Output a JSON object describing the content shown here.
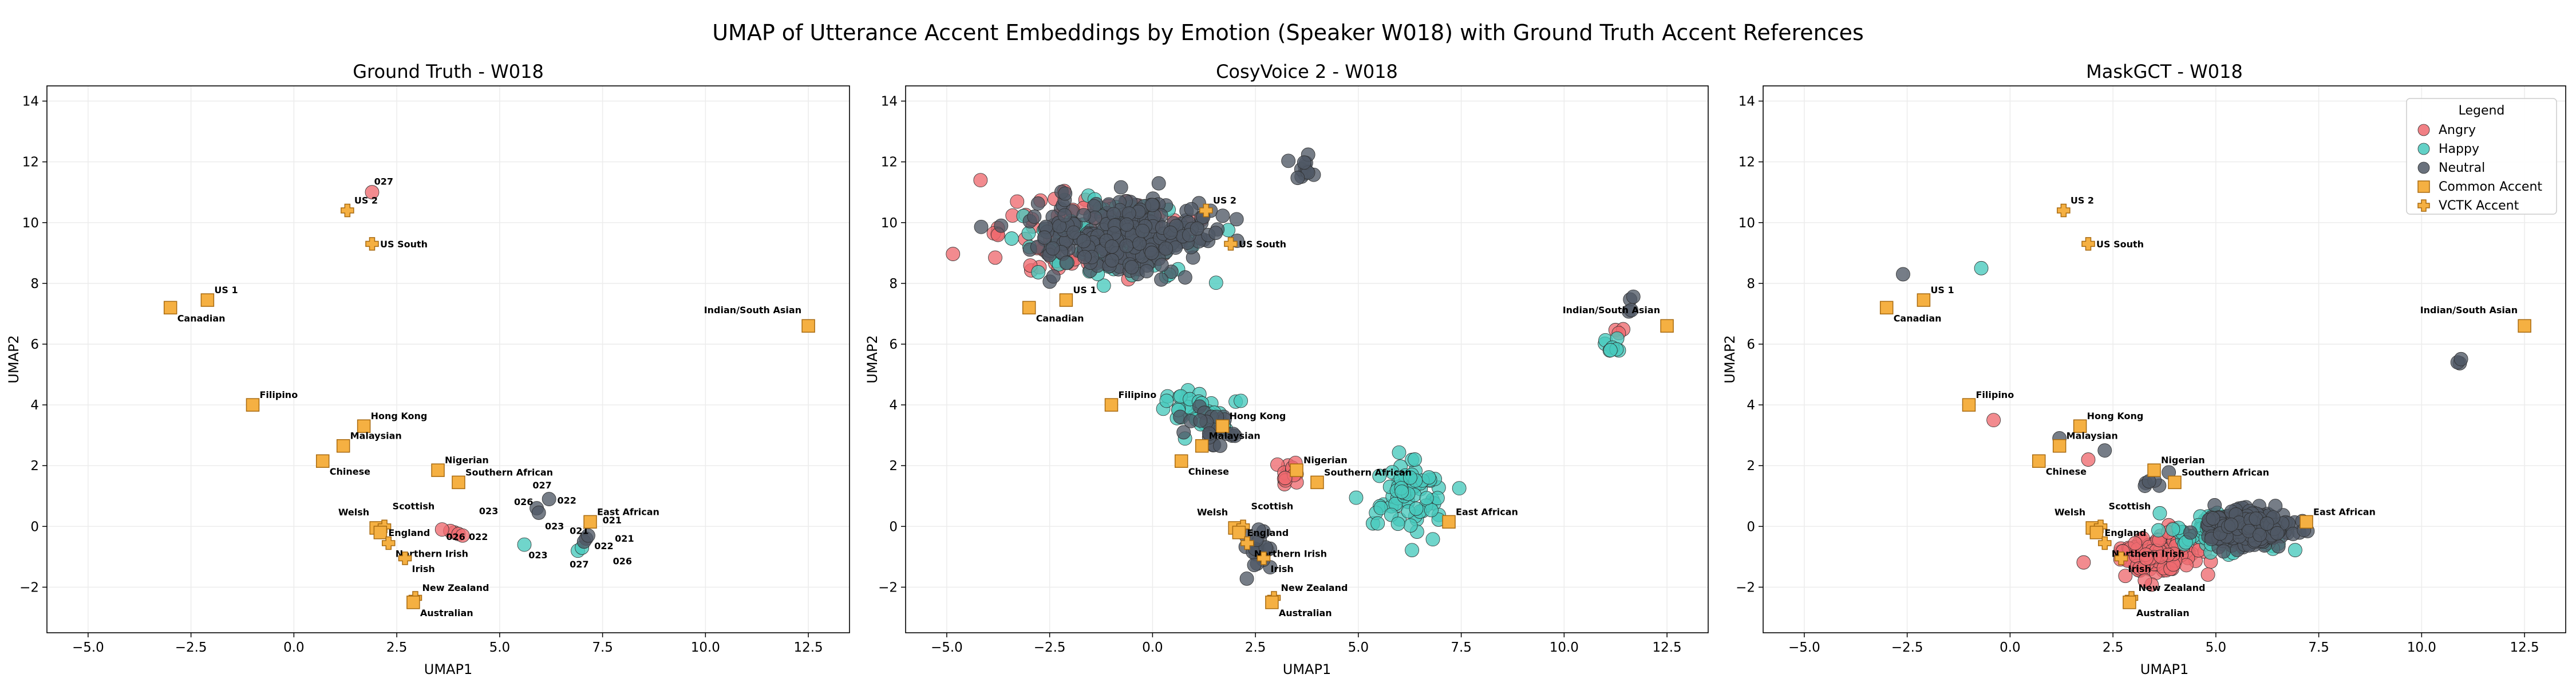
{
  "suptitle": "UMAP of Utterance Accent Embeddings by Emotion (Speaker W018) with Ground Truth Accent References",
  "colors": {
    "Angry": "#ee6a70",
    "Happy": "#48c9bd",
    "Neutral": "#4f5865",
    "accent_fill": "#f5b042",
    "accent_edge": "#a86a10"
  },
  "chart_data": [
    {
      "type": "scatter",
      "title": "Ground Truth - W018",
      "xlabel": "UMAP1",
      "ylabel": "UMAP2",
      "xlim": [
        -6,
        13.5
      ],
      "ylim": [
        -3.5,
        14.5
      ],
      "xticks": [
        -5.0,
        -2.5,
        0.0,
        2.5,
        5.0,
        7.5,
        10.0,
        12.5
      ],
      "yticks": [
        -2,
        0,
        2,
        4,
        6,
        8,
        10,
        12,
        14
      ],
      "grid": true,
      "legend": null,
      "emotion_points": [
        {
          "emotion": "Angry",
          "label": "027",
          "x": 1.9,
          "y": 11.0
        },
        {
          "emotion": "Angry",
          "label": "026",
          "x": 3.9,
          "y": -0.2
        },
        {
          "emotion": "Angry",
          "label": "",
          "x": 3.8,
          "y": -0.15
        },
        {
          "emotion": "Angry",
          "label": "",
          "x": 4.0,
          "y": -0.25
        },
        {
          "emotion": "Angry",
          "label": "",
          "x": 3.6,
          "y": -0.1
        },
        {
          "emotion": "Angry",
          "label": "",
          "x": 4.1,
          "y": -0.3
        },
        {
          "emotion": "Happy",
          "label": "023",
          "x": 5.6,
          "y": -0.6
        },
        {
          "emotion": "Happy",
          "label": "027",
          "x": 6.9,
          "y": -0.8
        },
        {
          "emotion": "Happy",
          "label": "",
          "x": 7.0,
          "y": -0.7
        },
        {
          "emotion": "Neutral",
          "label": "027",
          "x": 6.2,
          "y": 0.9
        },
        {
          "emotion": "Neutral",
          "label": "026",
          "x": 5.9,
          "y": 0.6
        },
        {
          "emotion": "Neutral",
          "label": "023",
          "x": 5.95,
          "y": 0.45
        },
        {
          "emotion": "Neutral",
          "label": "022",
          "x": 7.1,
          "y": -0.4
        },
        {
          "emotion": "Neutral",
          "label": "021",
          "x": 7.05,
          "y": -0.5
        },
        {
          "emotion": "Neutral",
          "label": "",
          "x": 7.15,
          "y": -0.3
        }
      ],
      "emotion_labels": [
        {
          "text": "027",
          "x": 1.95,
          "y": 11.25
        },
        {
          "text": "023",
          "x": 4.5,
          "y": 0.4
        },
        {
          "text": "026",
          "x": 3.7,
          "y": -0.45
        },
        {
          "text": "022",
          "x": 4.25,
          "y": -0.45
        },
        {
          "text": "023",
          "x": 5.7,
          "y": -1.05
        },
        {
          "text": "027",
          "x": 5.8,
          "y": 1.25
        },
        {
          "text": "026",
          "x": 5.35,
          "y": 0.7
        },
        {
          "text": "022",
          "x": 6.4,
          "y": 0.75
        },
        {
          "text": "023",
          "x": 6.1,
          "y": -0.1
        },
        {
          "text": "021",
          "x": 6.7,
          "y": -0.25
        },
        {
          "text": "022",
          "x": 7.3,
          "y": -0.75
        },
        {
          "text": "021",
          "x": 7.8,
          "y": -0.5
        },
        {
          "text": "027",
          "x": 6.7,
          "y": -1.35
        },
        {
          "text": "026",
          "x": 7.75,
          "y": -1.25
        },
        {
          "text": "021",
          "x": 7.5,
          "y": 0.1
        }
      ]
    },
    {
      "type": "scatter",
      "title": "CosyVoice 2 - W018",
      "xlabel": "UMAP1",
      "ylabel": "UMAP2",
      "xlim": [
        -6,
        13.5
      ],
      "ylim": [
        -3.5,
        14.5
      ],
      "xticks": [
        -5.0,
        -2.5,
        0.0,
        2.5,
        5.0,
        7.5,
        10.0,
        12.5
      ],
      "yticks": [
        -2,
        0,
        2,
        4,
        6,
        8,
        10,
        12,
        14
      ],
      "grid": true,
      "legend": null,
      "clusters": [
        {
          "emotion": "Angry",
          "n": 90,
          "cx": -1.5,
          "cy": 9.5,
          "sx": 2.2,
          "sy": 1.2
        },
        {
          "emotion": "Happy",
          "n": 110,
          "cx": -1.0,
          "cy": 9.3,
          "sx": 1.8,
          "sy": 1.1
        },
        {
          "emotion": "Neutral",
          "n": 280,
          "cx": -0.8,
          "cy": 9.6,
          "sx": 2.0,
          "sy": 1.1
        },
        {
          "emotion": "Neutral",
          "n": 12,
          "cx": 3.7,
          "cy": 11.8,
          "sx": 0.2,
          "sy": 0.5
        },
        {
          "emotion": "Happy",
          "n": 40,
          "cx": 1.0,
          "cy": 3.8,
          "sx": 0.8,
          "sy": 0.6
        },
        {
          "emotion": "Neutral",
          "n": 25,
          "cx": 1.5,
          "cy": 3.2,
          "sx": 0.7,
          "sy": 0.6
        },
        {
          "emotion": "Angry",
          "n": 16,
          "cx": 3.3,
          "cy": 1.8,
          "sx": 0.4,
          "sy": 0.4
        },
        {
          "emotion": "Happy",
          "n": 75,
          "cx": 6.2,
          "cy": 0.9,
          "sx": 0.7,
          "sy": 1.0
        },
        {
          "emotion": "Neutral",
          "n": 20,
          "cx": 2.6,
          "cy": -0.9,
          "sx": 0.3,
          "sy": 0.9
        },
        {
          "emotion": "Happy",
          "n": 8,
          "cx": 11.0,
          "cy": 5.9,
          "sx": 0.4,
          "sy": 0.3
        },
        {
          "emotion": "Neutral",
          "n": 4,
          "cx": 11.6,
          "cy": 7.2,
          "sx": 0.1,
          "sy": 0.7
        },
        {
          "emotion": "Angry",
          "n": 3,
          "cx": 11.5,
          "cy": 6.4,
          "sx": 0.3,
          "sy": 0.2
        }
      ]
    },
    {
      "type": "scatter",
      "title": "MaskGCT - W018",
      "xlabel": "UMAP1",
      "ylabel": "UMAP2",
      "xlim": [
        -6,
        13.5
      ],
      "ylim": [
        -3.5,
        14.5
      ],
      "xticks": [
        -5.0,
        -2.5,
        0.0,
        2.5,
        5.0,
        7.5,
        10.0,
        12.5
      ],
      "yticks": [
        -2,
        0,
        2,
        4,
        6,
        8,
        10,
        12,
        14
      ],
      "grid": true,
      "legend": {
        "title": "Legend",
        "position": "top-right",
        "entries": [
          "Angry",
          "Happy",
          "Neutral",
          "Common Accent",
          "VCTK Accent"
        ]
      },
      "clusters": [
        {
          "emotion": "Angry",
          "n": 150,
          "cx": 3.6,
          "cy": -0.9,
          "sx": 0.9,
          "sy": 0.6
        },
        {
          "emotion": "Happy",
          "n": 120,
          "cx": 5.2,
          "cy": -0.2,
          "sx": 1.1,
          "sy": 0.6
        },
        {
          "emotion": "Neutral",
          "n": 300,
          "cx": 5.8,
          "cy": 0.0,
          "sx": 0.9,
          "sy": 0.5
        },
        {
          "emotion": "Neutral",
          "n": 6,
          "cx": 3.5,
          "cy": 1.4,
          "sx": 0.3,
          "sy": 0.4
        },
        {
          "emotion": "Neutral",
          "n": 3,
          "cx": 10.9,
          "cy": 5.4,
          "sx": 0.1,
          "sy": 0.1
        }
      ],
      "emotion_points": [
        {
          "emotion": "Neutral",
          "label": "",
          "x": -2.6,
          "y": 8.3
        },
        {
          "emotion": "Happy",
          "label": "",
          "x": -0.7,
          "y": 8.5
        },
        {
          "emotion": "Angry",
          "label": "",
          "x": -0.4,
          "y": 3.5
        },
        {
          "emotion": "Neutral",
          "label": "",
          "x": 1.2,
          "y": 2.9
        },
        {
          "emotion": "Angry",
          "label": "",
          "x": 1.9,
          "y": 2.2
        },
        {
          "emotion": "Neutral",
          "label": "",
          "x": 2.3,
          "y": 2.5
        }
      ]
    }
  ],
  "accent_refs": [
    {
      "name": "US 2",
      "kind": "VCTK Accent",
      "x": 1.3,
      "y": 10.4,
      "label_pos": "ur"
    },
    {
      "name": "US South",
      "kind": "VCTK Accent",
      "x": 1.9,
      "y": 9.3,
      "label_pos": "r"
    },
    {
      "name": "US 1",
      "kind": "Common Accent",
      "x": -2.1,
      "y": 7.45,
      "label_pos": "ur"
    },
    {
      "name": "Canadian",
      "kind": "Common Accent",
      "x": -3.0,
      "y": 7.2,
      "label_pos": "dr"
    },
    {
      "name": "Indian/South Asian",
      "kind": "Common Accent",
      "x": 12.5,
      "y": 6.6,
      "label_pos": "ul"
    },
    {
      "name": "Filipino",
      "kind": "Common Accent",
      "x": -1.0,
      "y": 4.0,
      "label_pos": "ur"
    },
    {
      "name": "Hong Kong",
      "kind": "Common Accent",
      "x": 1.7,
      "y": 3.3,
      "label_pos": "ur"
    },
    {
      "name": "Malaysian",
      "kind": "Common Accent",
      "x": 1.2,
      "y": 2.65,
      "label_pos": "ur"
    },
    {
      "name": "Chinese",
      "kind": "Common Accent",
      "x": 0.7,
      "y": 2.15,
      "label_pos": "dr"
    },
    {
      "name": "Nigerian",
      "kind": "Common Accent",
      "x": 3.5,
      "y": 1.85,
      "label_pos": "ur"
    },
    {
      "name": "Southern African",
      "kind": "Common Accent",
      "x": 4.0,
      "y": 1.45,
      "label_pos": "ur"
    },
    {
      "name": "East African",
      "kind": "Common Accent",
      "x": 7.2,
      "y": 0.15,
      "label_pos": "ur"
    },
    {
      "name": "Welsh",
      "kind": "Common Accent",
      "x": 2.0,
      "y": -0.05,
      "label_pos": "ul"
    },
    {
      "name": "Scottish",
      "kind": "VCTK Accent",
      "x": 2.2,
      "y": 0.0,
      "label_pos": "uur"
    },
    {
      "name": "England",
      "kind": "Common Accent",
      "x": 2.1,
      "y": -0.2,
      "label_pos": "r"
    },
    {
      "name": "Northern Irish",
      "kind": "VCTK Accent",
      "x": 2.3,
      "y": -0.55,
      "label_pos": "dr"
    },
    {
      "name": "Irish",
      "kind": "VCTK Accent",
      "x": 2.7,
      "y": -1.05,
      "label_pos": "dr"
    },
    {
      "name": "New Zealand",
      "kind": "VCTK Accent",
      "x": 2.95,
      "y": -2.35,
      "label_pos": "ur"
    },
    {
      "name": "Australian",
      "kind": "Common Accent",
      "x": 2.9,
      "y": -2.5,
      "label_pos": "dr"
    }
  ]
}
